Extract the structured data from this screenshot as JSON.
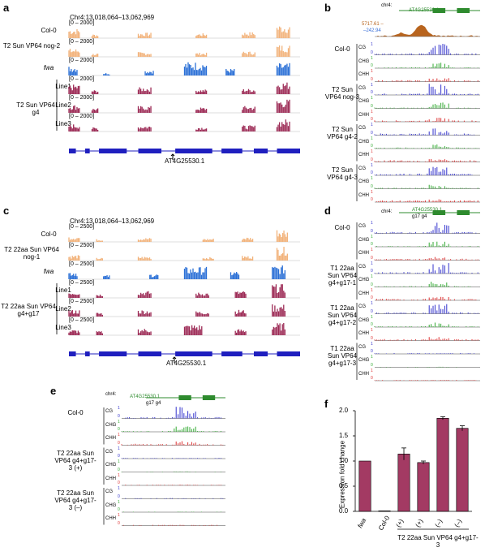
{
  "panels": {
    "a": {
      "letter": "a",
      "coords": "Chr4:13,018,064–13,062,969",
      "range": "[0 – 2000]",
      "tracks": [
        "Col-0",
        "T2 Sun VP64 nog-2",
        "fwa",
        "Line1",
        "Line2",
        "Line3"
      ],
      "group_label": "T2 Sun VP64 g4",
      "gene": "AT4G25530.1"
    },
    "b": {
      "letter": "b",
      "chrom": "chr4:",
      "gene": "AT4G25530.1",
      "scale_top": "5717.61 –",
      "scale_bottom": "–242.94",
      "groups": [
        "Col-0",
        "T2 Sun VP64 nog-3",
        "T2 Sun VP64 g4-2",
        "T2 Sun VP64 g4-3"
      ],
      "contexts": [
        "CG",
        "CHG",
        "CHH"
      ]
    },
    "c": {
      "letter": "c",
      "coords": "Chr4:13,018,064–13,062,969",
      "range": "[0 – 2500]",
      "tracks": [
        "Col-0",
        "T2 22aa Sun VP64 nog-1",
        "fwa",
        "Line1",
        "Line2",
        "Line3"
      ],
      "group_label": "T2 22aa Sun VP64 g4+g17",
      "gene": "AT4G25530.1"
    },
    "d": {
      "letter": "d",
      "chrom": "chr4:",
      "gene": "AT4G25530.1",
      "guides": "g17 g4",
      "groups": [
        "Col-0",
        "T1 22aa Sun VP64 g4+g17-1",
        "T1 22aa Sun VP64 g4+g17-2",
        "T1 22aa Sun VP64 g4+g17-3"
      ],
      "contexts": [
        "CG",
        "CHG",
        "CHH"
      ]
    },
    "e": {
      "letter": "e",
      "chrom": "chr4:",
      "gene": "AT4G25530.1",
      "guides": "g17 g4",
      "groups": [
        "Col-0",
        "T2 22aa Sun VP64 g4+g17-3 (+)",
        "T2 22aa Sun VP64 g4+g17-3 (–)"
      ],
      "contexts": [
        "CG",
        "CHG",
        "CHH"
      ]
    },
    "f": {
      "letter": "f",
      "group_label": "T2 22aa Sun VP64 g4+g17-3"
    }
  },
  "scale_digits": {
    "one": "1",
    "zero": "0"
  },
  "colors": {
    "col0": "#f2b27a",
    "fwa": "#2a6fd6",
    "line": "#9c2a55",
    "cg": "#3333cc",
    "chg": "#33aa33",
    "chh": "#dd3333",
    "gene": "#1f1fbf",
    "gene_green": "#2e8b2e",
    "bar": "#a33a63",
    "chip": "#b8641e"
  },
  "chart_data": {
    "type": "bar",
    "categories": [
      "fwa",
      "Col-0",
      "(+)",
      "(+)",
      "(–)",
      "(–)"
    ],
    "values": [
      1.0,
      0.01,
      1.14,
      0.97,
      1.85,
      1.65
    ],
    "errors": [
      0,
      0,
      0.12,
      0.03,
      0.03,
      0.05
    ],
    "ylabel": "Expression fold change",
    "ylim": [
      0,
      2.0
    ],
    "yticks": [
      "0.0",
      "0.5",
      "1.0",
      "1.5",
      "2.0"
    ],
    "xlabel": "T2 22aa Sun VP64 g4+g17-3"
  }
}
